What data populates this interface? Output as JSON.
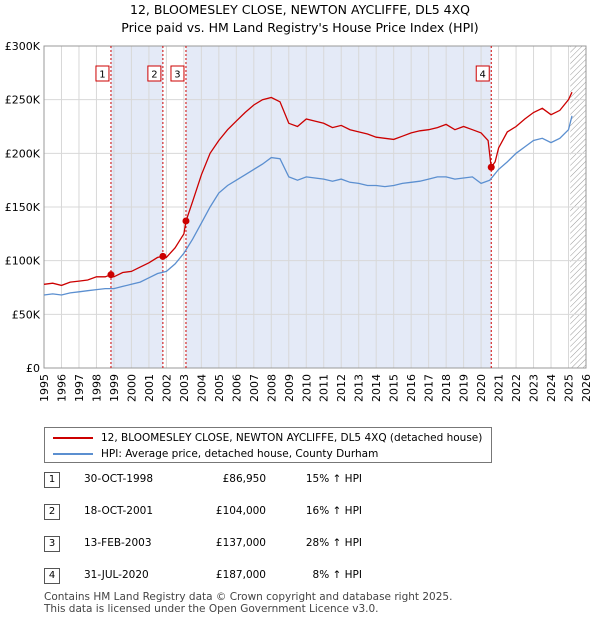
{
  "title_line1": "12, BLOOMESLEY CLOSE, NEWTON AYCLIFFE, DL5 4XQ",
  "title_line2": "Price paid vs. HM Land Registry's House Price Index (HPI)",
  "chart_data": {
    "type": "line",
    "title": "12, BLOOMESLEY CLOSE, NEWTON AYCLIFFE, DL5 4XQ — Price paid vs. HM Land Registry's House Price Index (HPI)",
    "xlabel": "",
    "ylabel": "",
    "xlim": [
      1995.0,
      2026.0
    ],
    "ylim": [
      0,
      300000
    ],
    "yticks": [
      0,
      50000,
      100000,
      150000,
      200000,
      250000,
      300000
    ],
    "ytick_labels": [
      "£0",
      "£50K",
      "£100K",
      "£150K",
      "£200K",
      "£250K",
      "£300K"
    ],
    "xticks": [
      1995,
      1996,
      1997,
      1998,
      1999,
      2000,
      2001,
      2002,
      2003,
      2004,
      2005,
      2006,
      2007,
      2008,
      2009,
      2010,
      2011,
      2012,
      2013,
      2014,
      2015,
      2016,
      2017,
      2018,
      2019,
      2020,
      2021,
      2022,
      2023,
      2024,
      2025,
      2026
    ],
    "xtick_labels": [
      "1995",
      "1996",
      "1997",
      "1998",
      "1999",
      "2000",
      "2001",
      "2002",
      "2003",
      "2004",
      "2005",
      "2006",
      "2007",
      "2008",
      "2009",
      "2010",
      "2011",
      "2012",
      "2013",
      "2014",
      "2015",
      "2016",
      "2017",
      "2018",
      "2019",
      "2020",
      "2021",
      "2022",
      "2023",
      "2024",
      "2025",
      "2026"
    ],
    "grid": true,
    "shaded_periods": [
      [
        1998.83,
        2001.8
      ],
      [
        2003.12,
        2020.58
      ]
    ],
    "hatched_period": [
      2025.1,
      2026.0
    ],
    "series": [
      {
        "name": "12, BLOOMESLEY CLOSE, NEWTON AYCLIFFE, DL5 4XQ (detached house)",
        "color": "#cc0000",
        "x": [
          1995.0,
          1995.5,
          1996.0,
          1996.5,
          1997.0,
          1997.5,
          1998.0,
          1998.5,
          1998.83,
          1999.0,
          1999.5,
          2000.0,
          2000.5,
          2001.0,
          2001.5,
          2001.8,
          2002.0,
          2002.5,
          2003.0,
          2003.12,
          2003.5,
          2004.0,
          2004.5,
          2005.0,
          2005.5,
          2006.0,
          2006.5,
          2007.0,
          2007.5,
          2008.0,
          2008.5,
          2009.0,
          2009.5,
          2010.0,
          2010.5,
          2011.0,
          2011.5,
          2012.0,
          2012.5,
          2013.0,
          2013.5,
          2014.0,
          2014.5,
          2015.0,
          2015.5,
          2016.0,
          2016.5,
          2017.0,
          2017.5,
          2018.0,
          2018.5,
          2019.0,
          2019.5,
          2020.0,
          2020.4,
          2020.58,
          2020.8,
          2021.0,
          2021.5,
          2022.0,
          2022.5,
          2023.0,
          2023.5,
          2024.0,
          2024.5,
          2025.0,
          2025.2
        ],
        "values": [
          78000,
          79000,
          77000,
          80000,
          81000,
          82000,
          85000,
          85000,
          86950,
          85000,
          89000,
          90000,
          94000,
          98000,
          103000,
          104000,
          103000,
          112000,
          125000,
          137000,
          155000,
          180000,
          200000,
          212000,
          222000,
          230000,
          238000,
          245000,
          250000,
          252000,
          248000,
          228000,
          225000,
          232000,
          230000,
          228000,
          224000,
          226000,
          222000,
          220000,
          218000,
          215000,
          214000,
          213000,
          216000,
          219000,
          221000,
          222000,
          224000,
          227000,
          222000,
          225000,
          222000,
          219000,
          212000,
          187000,
          192000,
          205000,
          220000,
          225000,
          232000,
          238000,
          242000,
          236000,
          240000,
          250000,
          257000
        ]
      },
      {
        "name": "HPI: Average price, detached house, County Durham",
        "color": "#5b8fd0",
        "x": [
          1995.0,
          1995.5,
          1996.0,
          1996.5,
          1997.0,
          1997.5,
          1998.0,
          1998.5,
          1999.0,
          1999.5,
          2000.0,
          2000.5,
          2001.0,
          2001.5,
          2002.0,
          2002.5,
          2003.0,
          2003.5,
          2004.0,
          2004.5,
          2005.0,
          2005.5,
          2006.0,
          2006.5,
          2007.0,
          2007.5,
          2008.0,
          2008.5,
          2009.0,
          2009.5,
          2010.0,
          2010.5,
          2011.0,
          2011.5,
          2012.0,
          2012.5,
          2013.0,
          2013.5,
          2014.0,
          2014.5,
          2015.0,
          2015.5,
          2016.0,
          2016.5,
          2017.0,
          2017.5,
          2018.0,
          2018.5,
          2019.0,
          2019.5,
          2020.0,
          2020.5,
          2021.0,
          2021.5,
          2022.0,
          2022.5,
          2023.0,
          2023.5,
          2024.0,
          2024.5,
          2025.0,
          2025.2
        ],
        "values": [
          68000,
          69000,
          68000,
          70000,
          71000,
          72000,
          73000,
          74000,
          74000,
          76000,
          78000,
          80000,
          84000,
          88000,
          90000,
          97000,
          107000,
          120000,
          135000,
          150000,
          163000,
          170000,
          175000,
          180000,
          185000,
          190000,
          196000,
          195000,
          178000,
          175000,
          178000,
          177000,
          176000,
          174000,
          176000,
          173000,
          172000,
          170000,
          170000,
          169000,
          170000,
          172000,
          173000,
          174000,
          176000,
          178000,
          178000,
          176000,
          177000,
          178000,
          172000,
          175000,
          185000,
          192000,
          200000,
          206000,
          212000,
          214000,
          210000,
          214000,
          222000,
          235000
        ]
      }
    ],
    "sale_markers": [
      {
        "label": "1",
        "x": 1998.83,
        "value": 86950
      },
      {
        "label": "2",
        "x": 2001.8,
        "value": 104000
      },
      {
        "label": "3",
        "x": 2003.12,
        "value": 137000
      },
      {
        "label": "4",
        "x": 2020.58,
        "value": 187000
      }
    ]
  },
  "legend": {
    "property_label": "12, BLOOMESLEY CLOSE, NEWTON AYCLIFFE, DL5 4XQ (detached house)",
    "hpi_label": "HPI: Average price, detached house, County Durham",
    "property_color": "#cc0000",
    "hpi_color": "#5b8fd0"
  },
  "sales": [
    {
      "num": "1",
      "date": "30-OCT-1998",
      "price": "£86,950",
      "hpi": "15% ↑ HPI"
    },
    {
      "num": "2",
      "date": "18-OCT-2001",
      "price": "£104,000",
      "hpi": "16% ↑ HPI"
    },
    {
      "num": "3",
      "date": "13-FEB-2003",
      "price": "£137,000",
      "hpi": "28% ↑ HPI"
    },
    {
      "num": "4",
      "date": "31-JUL-2020",
      "price": "£187,000",
      "hpi": "8% ↑ HPI"
    }
  ],
  "footer_line1": "Contains HM Land Registry data © Crown copyright and database right 2025.",
  "footer_line2": "This data is licensed under the Open Government Licence v3.0."
}
